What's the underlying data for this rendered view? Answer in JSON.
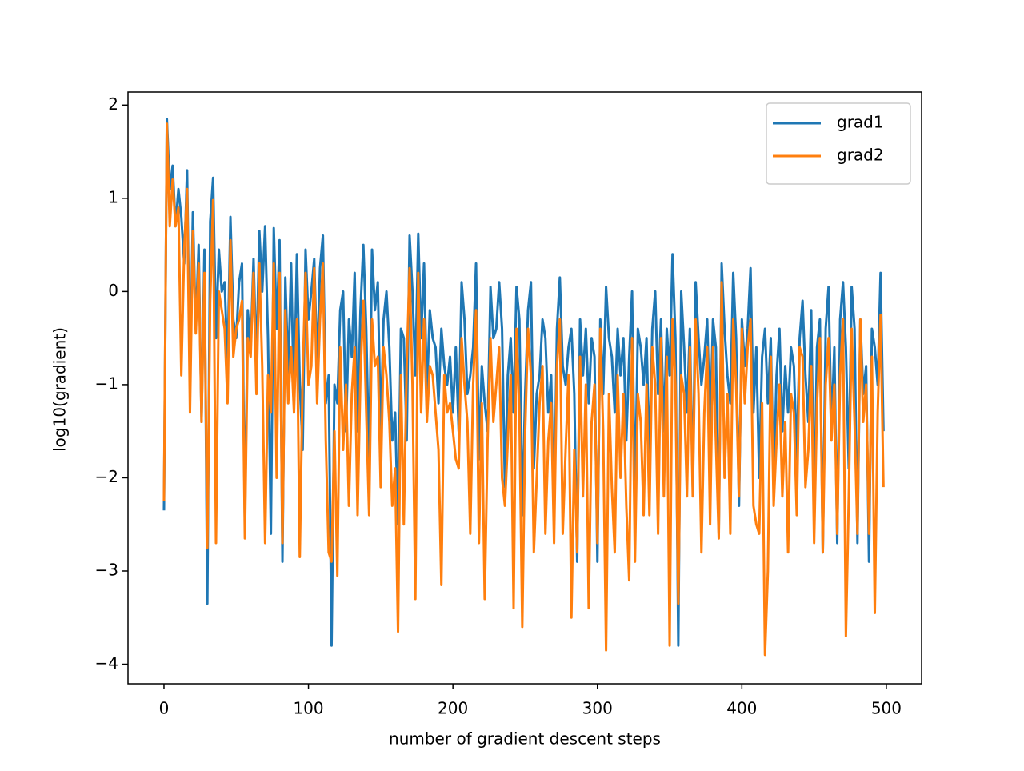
{
  "chart_data": {
    "type": "line",
    "x_label": "number of gradient descent steps",
    "y_label": "log10(gradient)",
    "xlim": [
      -24.9,
      524.4
    ],
    "ylim": [
      -4.21,
      2.14
    ],
    "xticks": [
      0,
      100,
      200,
      300,
      400,
      500
    ],
    "yticks": [
      {
        "value": -4,
        "label": "−4"
      },
      {
        "value": -3,
        "label": "−3"
      },
      {
        "value": -2,
        "label": "−2"
      },
      {
        "value": -1,
        "label": "−1"
      },
      0,
      1,
      2
    ],
    "legend": "upper right",
    "x": [
      0,
      2,
      4,
      6,
      8,
      10,
      12,
      14,
      16,
      18,
      20,
      22,
      24,
      26,
      28,
      30,
      32,
      34,
      36,
      38,
      40,
      42,
      44,
      46,
      48,
      50,
      52,
      54,
      56,
      58,
      60,
      62,
      64,
      66,
      68,
      70,
      72,
      74,
      76,
      78,
      80,
      82,
      84,
      86,
      88,
      90,
      92,
      94,
      96,
      98,
      100,
      102,
      104,
      106,
      108,
      110,
      112,
      114,
      116,
      118,
      120,
      122,
      124,
      126,
      128,
      130,
      132,
      134,
      136,
      138,
      140,
      142,
      144,
      146,
      148,
      150,
      152,
      154,
      156,
      158,
      160,
      162,
      164,
      166,
      168,
      170,
      172,
      174,
      176,
      178,
      180,
      182,
      184,
      186,
      188,
      190,
      192,
      194,
      196,
      198,
      200,
      202,
      204,
      206,
      208,
      210,
      212,
      214,
      216,
      218,
      220,
      222,
      224,
      226,
      228,
      230,
      232,
      234,
      236,
      238,
      240,
      242,
      244,
      246,
      248,
      250,
      252,
      254,
      256,
      258,
      260,
      262,
      264,
      266,
      268,
      270,
      272,
      274,
      276,
      278,
      280,
      282,
      284,
      286,
      288,
      290,
      292,
      294,
      296,
      298,
      300,
      302,
      304,
      306,
      308,
      310,
      312,
      314,
      316,
      318,
      320,
      322,
      324,
      326,
      328,
      330,
      332,
      334,
      336,
      338,
      340,
      342,
      344,
      346,
      348,
      350,
      352,
      354,
      356,
      358,
      360,
      362,
      364,
      366,
      368,
      370,
      372,
      374,
      376,
      378,
      380,
      382,
      384,
      386,
      388,
      390,
      392,
      394,
      396,
      398,
      400,
      402,
      404,
      406,
      408,
      410,
      412,
      414,
      416,
      418,
      420,
      422,
      424,
      426,
      428,
      430,
      432,
      434,
      436,
      438,
      440,
      442,
      444,
      446,
      448,
      450,
      452,
      454,
      456,
      458,
      460,
      462,
      464,
      466,
      468,
      470,
      472,
      474,
      476,
      478,
      480,
      482,
      484,
      486,
      488,
      490,
      492,
      494,
      496,
      498
    ],
    "series": [
      {
        "name": "grad1",
        "color": "#1f77b4",
        "values": [
          -2.35,
          1.85,
          1.1,
          1.35,
          0.7,
          1.1,
          0.8,
          0.3,
          1.3,
          -1.0,
          0.85,
          -0.4,
          0.5,
          -1.4,
          0.45,
          -3.35,
          0.75,
          1.22,
          -0.5,
          0.45,
          0.0,
          0.1,
          -0.8,
          0.8,
          -0.3,
          -0.5,
          0.1,
          0.3,
          -2.5,
          -0.2,
          -0.6,
          0.35,
          -0.8,
          0.65,
          0.0,
          0.7,
          -0.5,
          -2.6,
          0.68,
          -0.4,
          0.55,
          -2.9,
          0.15,
          -0.9,
          0.3,
          -1.2,
          0.4,
          -1.0,
          -1.7,
          0.45,
          -0.3,
          0.0,
          0.35,
          -0.8,
          0.25,
          0.6,
          -1.2,
          -0.9,
          -3.8,
          -1.0,
          -1.2,
          -0.2,
          0.0,
          -1.5,
          -0.3,
          -0.7,
          0.2,
          -1.5,
          -0.2,
          0.5,
          -0.4,
          -1.9,
          0.45,
          -0.2,
          0.1,
          -1.5,
          -0.3,
          0.0,
          -0.6,
          -1.6,
          -1.3,
          -2.5,
          -0.4,
          -0.5,
          -1.6,
          0.6,
          0.0,
          -0.9,
          0.62,
          -0.5,
          0.3,
          -1.1,
          -0.2,
          -0.5,
          -0.6,
          -1.2,
          -0.4,
          -0.8,
          -1.0,
          -0.7,
          -1.3,
          -0.6,
          -1.5,
          0.1,
          -0.3,
          -1.1,
          -0.9,
          -0.6,
          0.3,
          -1.8,
          -0.8,
          -1.2,
          -1.5,
          0.05,
          -0.5,
          -0.4,
          0.1,
          -0.4,
          -2.1,
          -0.9,
          -0.5,
          -1.3,
          0.05,
          -0.3,
          -2.4,
          -1.1,
          -0.2,
          0.1,
          -1.9,
          -1.1,
          -0.9,
          -0.3,
          -0.5,
          -1.3,
          -0.9,
          -2.5,
          -0.4,
          0.15,
          -0.8,
          -1.0,
          -0.6,
          -0.4,
          -1.1,
          -2.9,
          -0.3,
          -0.9,
          -0.4,
          -1.2,
          -0.5,
          -0.7,
          -2.9,
          -0.3,
          -1.1,
          0.05,
          -0.5,
          -0.7,
          -1.3,
          -0.4,
          -0.9,
          -0.5,
          -1.6,
          -0.7,
          0.0,
          -2.3,
          -0.4,
          -0.6,
          -1.0,
          -0.5,
          -1.8,
          -0.4,
          0.0,
          -1.1,
          -0.3,
          -1.5,
          -0.4,
          -0.9,
          0.4,
          -0.5,
          -3.8,
          0.0,
          -0.6,
          -1.3,
          -0.4,
          -2.1,
          0.1,
          -0.5,
          -1.0,
          -0.7,
          -0.3,
          -1.5,
          -0.3,
          -0.6,
          -2.6,
          0.3,
          -0.4,
          -0.9,
          -1.2,
          0.2,
          -0.5,
          -2.3,
          -0.3,
          -0.8,
          -0.4,
          0.25,
          -1.3,
          -0.6,
          -2.0,
          -0.7,
          -0.4,
          -1.2,
          -0.5,
          -2.1,
          -0.9,
          -0.4,
          -1.5,
          -0.8,
          -1.3,
          -0.6,
          -0.8,
          -1.8,
          -0.5,
          -0.1,
          -0.9,
          -1.4,
          -0.2,
          -2.5,
          -0.6,
          -0.3,
          -2.8,
          -0.4,
          0.05,
          -1.5,
          -0.6,
          -2.7,
          -0.3,
          0.1,
          -0.6,
          -1.9,
          0.05,
          -0.4,
          -2.7,
          -0.3,
          -1.1,
          -0.8,
          -2.9,
          -0.4,
          -0.6,
          -1.0,
          0.2,
          -1.5
        ]
      },
      {
        "name": "grad2",
        "color": "#ff7f0e",
        "values": [
          -2.25,
          1.8,
          0.7,
          1.2,
          0.7,
          0.9,
          -0.9,
          0.45,
          1.1,
          -1.3,
          0.65,
          -0.45,
          0.3,
          -1.4,
          0.2,
          -2.75,
          -0.1,
          0.98,
          -2.7,
          0.0,
          -0.2,
          -0.4,
          -1.2,
          0.55,
          -0.7,
          -0.4,
          -0.3,
          -0.1,
          -2.65,
          -0.5,
          -0.7,
          0.2,
          -1.1,
          0.3,
          -0.8,
          -2.7,
          -0.9,
          -1.3,
          0.3,
          -2.0,
          0.2,
          -2.7,
          -0.2,
          -1.2,
          -0.6,
          -1.3,
          -0.3,
          -2.85,
          -0.9,
          0.2,
          -1.0,
          -0.8,
          0.25,
          -1.2,
          -0.3,
          0.3,
          -1.6,
          -2.8,
          -2.9,
          -1.5,
          -3.05,
          -0.6,
          -1.7,
          -1.0,
          -2.3,
          -1.1,
          -0.6,
          -2.4,
          -0.9,
          -0.1,
          -1.3,
          -2.4,
          -0.3,
          -0.8,
          -0.7,
          -2.1,
          -0.6,
          -0.9,
          -1.4,
          -2.3,
          -1.9,
          -3.65,
          -0.9,
          -2.5,
          -0.8,
          0.25,
          -1.0,
          -3.3,
          0.2,
          -1.3,
          -0.3,
          -1.4,
          -0.8,
          -0.9,
          -1.3,
          -1.7,
          -3.15,
          -0.9,
          -1.3,
          -1.2,
          -1.5,
          -1.8,
          -1.9,
          -0.5,
          -1.0,
          -1.4,
          -2.6,
          -1.0,
          -0.2,
          -2.7,
          -1.2,
          -3.3,
          -1.6,
          -0.5,
          -1.4,
          -1.0,
          -0.6,
          -2.0,
          -2.3,
          -1.6,
          -0.9,
          -3.4,
          -0.4,
          -1.3,
          -3.6,
          -1.5,
          -0.4,
          -0.9,
          -2.8,
          -2.0,
          -1.2,
          -0.8,
          -2.6,
          -1.6,
          -1.2,
          -2.7,
          -0.8,
          -0.3,
          -2.6,
          -1.7,
          -0.9,
          -3.5,
          -1.7,
          -2.8,
          -0.7,
          -2.2,
          -1.0,
          -3.4,
          -1.4,
          -1.0,
          -2.7,
          -0.4,
          -1.5,
          -3.85,
          -1.1,
          -2.1,
          -2.8,
          -0.9,
          -2.0,
          -1.1,
          -2.3,
          -3.1,
          -0.5,
          -2.9,
          -1.1,
          -1.4,
          -2.4,
          -1.0,
          -2.4,
          -0.6,
          -1.0,
          -2.6,
          -0.5,
          -2.2,
          -0.7,
          -3.8,
          -0.3,
          -1.0,
          -3.35,
          -0.9,
          -1.1,
          -2.2,
          -0.6,
          -2.2,
          -0.3,
          -1.1,
          -2.8,
          -1.3,
          -0.6,
          -2.5,
          -0.6,
          -1.6,
          -2.65,
          0.1,
          -2.0,
          -1.1,
          -2.6,
          -0.3,
          -1.0,
          -2.2,
          -0.4,
          -1.2,
          -0.6,
          -0.3,
          -2.3,
          -2.5,
          -2.6,
          -1.2,
          -3.9,
          -3.0,
          -0.7,
          -2.3,
          -1.6,
          -1.0,
          -2.2,
          -1.4,
          -2.8,
          -1.1,
          -1.3,
          -2.4,
          -0.6,
          -0.7,
          -2.1,
          -1.7,
          -0.8,
          -2.7,
          -1.2,
          -0.5,
          -2.8,
          -1.0,
          -0.5,
          -1.6,
          -1.0,
          -2.6,
          -0.9,
          -0.3,
          -3.7,
          -2.2,
          -0.4,
          -1.4,
          -2.6,
          -0.3,
          -1.4,
          -1.0,
          -2.6,
          -0.7,
          -3.45,
          -1.3,
          -0.25,
          -2.1
        ]
      }
    ]
  }
}
